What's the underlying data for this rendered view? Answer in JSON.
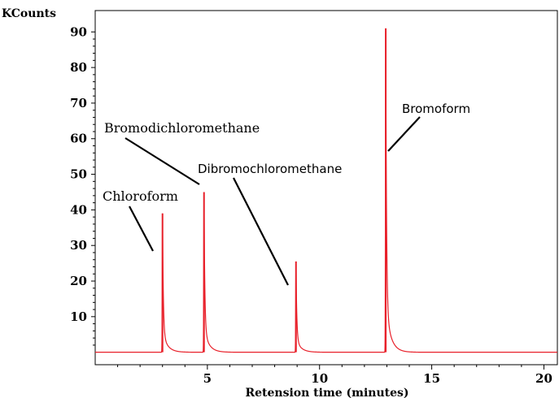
{
  "chart_data": {
    "type": "line",
    "title": "",
    "ylabel": "KCounts",
    "xlabel": "Retension time (minutes)",
    "xlim": [
      0,
      20.6
    ],
    "ylim": [
      -3.5,
      96
    ],
    "x_ticks": [
      5,
      10,
      15,
      20
    ],
    "y_ticks": [
      10,
      20,
      30,
      40,
      50,
      60,
      70,
      80,
      90
    ],
    "grid": false,
    "line_color": "#e8202a",
    "axis_color": "#000000",
    "series": [
      {
        "peaks": [
          {
            "x": 3.0,
            "height": 39,
            "label": "Chloroform"
          },
          {
            "x": 4.85,
            "height": 45,
            "label": "Bromodichloromethane"
          },
          {
            "x": 8.95,
            "height": 25.5,
            "label": "Dibromochloromethane"
          },
          {
            "x": 12.95,
            "height": 91,
            "label": "Bromoform"
          }
        ]
      }
    ],
    "annotations": [
      {
        "text": "Chloroform",
        "style": "serif"
      },
      {
        "text": "Bromodichloromethane",
        "style": "serif"
      },
      {
        "text": "Dibromochloromethane",
        "style": "sans"
      },
      {
        "text": "Bromoform",
        "style": "sans"
      }
    ]
  }
}
